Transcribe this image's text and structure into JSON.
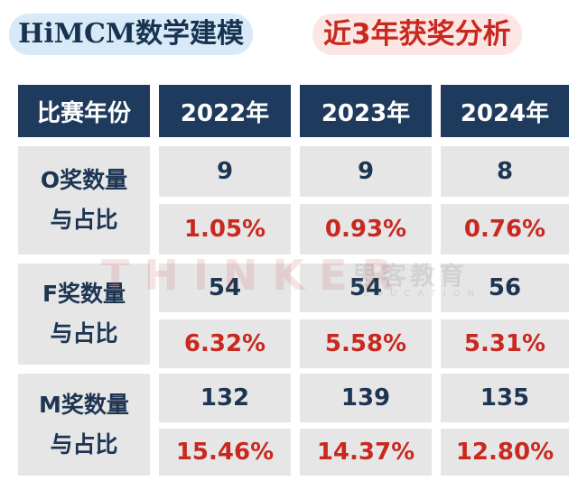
{
  "title": {
    "left": "HiMCM数学建模",
    "right": "近3年获奖分析"
  },
  "table": {
    "header": [
      "比赛年份",
      "2022年",
      "2023年",
      "2024年"
    ],
    "rows": [
      {
        "label_line1": "O奖数量",
        "label_line2": "与占比",
        "counts": [
          "9",
          "9",
          "8"
        ],
        "percents": [
          "1.05%",
          "0.93%",
          "0.76%"
        ]
      },
      {
        "label_line1": "F奖数量",
        "label_line2": "与占比",
        "counts": [
          "54",
          "54",
          "56"
        ],
        "percents": [
          "6.32%",
          "5.58%",
          "5.31%"
        ]
      },
      {
        "label_line1": "M奖数量",
        "label_line2": "与占比",
        "counts": [
          "132",
          "139",
          "135"
        ],
        "percents": [
          "15.46%",
          "14.37%",
          "12.80%"
        ]
      }
    ]
  },
  "watermark": {
    "brand": "THINKER",
    "chinese": "思客教育",
    "sub": "EDUCATION"
  },
  "colors": {
    "header_bg": "#1e3a5c",
    "cell_bg": "#e6e6e6",
    "accent_red": "#c9281f",
    "navy_text": "#1d3552"
  }
}
